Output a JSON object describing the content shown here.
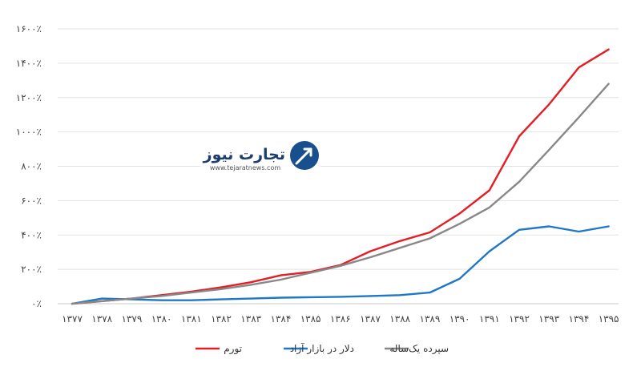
{
  "chart_data": {
    "type": "line",
    "title": "",
    "xlabel": "",
    "ylabel": "",
    "categories": [
      "۱۳۷۷",
      "۱۳۷۸",
      "۱۳۷۹",
      "۱۳۸۰",
      "۱۳۸۱",
      "۱۳۸۲",
      "۱۳۸۳",
      "۱۳۸۴",
      "۱۳۸۵",
      "۱۳۸۶",
      "۱۳۸۷",
      "۱۳۸۸",
      "۱۳۸۹",
      "۱۳۹۰",
      "۱۳۹۱",
      "۱۳۹۲",
      "۱۳۹۳",
      "۱۳۹۴",
      "۱۳۹۵"
    ],
    "y_ticks": [
      "۰٪",
      "۲۰۰٪",
      "۴۰۰٪",
      "۶۰۰٪",
      "۸۰۰٪",
      "۱۰۰۰٪",
      "۱۲۰۰٪",
      "۱۴۰۰٪",
      "۱۶۰۰٪"
    ],
    "ylim": [
      0,
      1600
    ],
    "grid": true,
    "legend_position": "bottom",
    "series": [
      {
        "name": "تورم",
        "color": "#e31e24",
        "values": [
          0,
          15,
          30,
          50,
          70,
          95,
          125,
          165,
          185,
          225,
          305,
          365,
          415,
          525,
          660,
          975,
          1160,
          1375,
          1480
        ]
      },
      {
        "name": "دلار در بازار آزاد",
        "color": "#1f77c8",
        "values": [
          0,
          30,
          25,
          20,
          20,
          25,
          30,
          35,
          38,
          40,
          45,
          50,
          65,
          145,
          305,
          430,
          450,
          420,
          450
        ]
      },
      {
        "name": "سپرده یک‌ساله",
        "color": "#888888",
        "values": [
          0,
          15,
          30,
          45,
          65,
          85,
          110,
          140,
          180,
          220,
          270,
          325,
          380,
          465,
          560,
          710,
          895,
          1085,
          1280
        ]
      }
    ]
  },
  "watermark": {
    "brand": "تجارت نیوز",
    "url": "www.tejaratnews.com"
  }
}
